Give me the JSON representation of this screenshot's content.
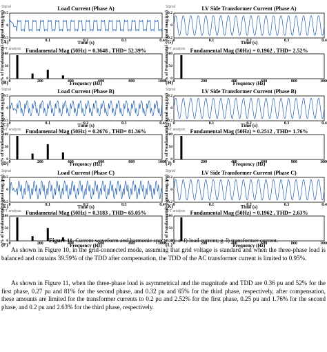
{
  "figure": {
    "caption_label": "Figure 11.",
    "caption_text": " Current waveform and harmonic spectrum: a–f) load current; g–l) transformer current.",
    "tag_wave_left": "Signal",
    "tag_fft": "FFT analysis",
    "tag_fft_left": "FFT analysis",
    "tag_wave_right": "Signal",
    "wave_ylabel": "Signal mag.(pu)",
    "fft_ylabel": "% of Fundamental",
    "wave_xlabel": "Time (s)",
    "fft_xlabel": "Frequency (Hz)",
    "panels": [
      {
        "letter": "(A)",
        "title": "Load Current (Phase A)"
      },
      {
        "letter": "(B)",
        "title": "Fundamental Mag (50Hz) = 0.3648 , THD= 52.39%"
      },
      {
        "letter": "(C)",
        "title": "Load Current (Phase B)"
      },
      {
        "letter": "(D)",
        "title": "Fundamental Mag (50Hz) = 0.2676 , THD= 81.36%"
      },
      {
        "letter": "(E)",
        "title": "Load Current (Phase C)"
      },
      {
        "letter": "(F)",
        "title": "Fundamental Mag (50Hz) = 0.3183 , THD= 65.05%"
      },
      {
        "letter": "(G)",
        "title": "LV Side Transformer Current (Phase A)"
      },
      {
        "letter": "(H)",
        "title": "Fundamental Mag (50Hz) = 0.1962 , THD= 2.52%"
      },
      {
        "letter": "(I)",
        "title": "LV Side Transformer Current (Phase B)"
      },
      {
        "letter": "(J)",
        "title": "Fundamental Mag (50Hz) = 0.2512 , THD= 1.76%"
      },
      {
        "letter": "(K)",
        "title": "LV Side Transformer Current (Phase C)"
      },
      {
        "letter": "(L)",
        "title": "Fundamental Mag (50Hz) = 0.1962 , THD= 2.63%"
      }
    ],
    "time_ticks": [
      "0",
      "0.1",
      "0.2",
      "0.3",
      "0.4"
    ],
    "freq_ticks": [
      "0",
      "200",
      "400",
      "600",
      "800",
      "1000"
    ],
    "wave_yticks_load": [
      "0.5",
      "0",
      "-0.5"
    ],
    "wave_yticks_trans": [
      "0.2",
      "0",
      "-0.2"
    ],
    "fft_yticks": [
      "100",
      "50",
      "0"
    ]
  },
  "paragraphs": [
    "As shown in Figure 10, in the grid-connected mode, assuming that grid voltage is standard and when the three-phase load is balanced and contains 39.59% of the TDD after compensation, the TDD of the AC transformer current is limited to 0.95%.",
    "As shown in Figure 11, when the three-phase load is asymmetrical and the magnitude and TDD are 0.36 pu and 52% for the first phase, 0.27 pu and 81% for the second phase, and 0.32 pu and 65% for the third phase, respectively, after compensation, these amounts are limited for the transformer currents to 0.2 pu and 2.52% for the first phase, 0.25 pu and 1.76% for the second phase, and 0.2 pu and 2.63% for the third phase, respectively."
  ],
  "chart_data": [
    {
      "panel": "B",
      "type": "bar",
      "title": "Fundamental Mag (50Hz) = 0.3648 , THD= 52.39%",
      "xlabel": "Frequency (Hz)",
      "ylabel": "% of Fundamental",
      "xlim": [
        0,
        1000
      ],
      "ylim": [
        0,
        100
      ],
      "x": [
        50,
        150,
        250,
        350
      ],
      "values": [
        100,
        22,
        38,
        14
      ]
    },
    {
      "panel": "D",
      "type": "bar",
      "title": "Fundamental Mag (50Hz) = 0.2676 , THD= 81.36%",
      "xlabel": "Frequency (Hz)",
      "ylabel": "% of Fundamental",
      "xlim": [
        0,
        1000
      ],
      "ylim": [
        0,
        100
      ],
      "x": [
        50,
        150,
        250,
        350
      ],
      "values": [
        100,
        25,
        65,
        30
      ]
    },
    {
      "panel": "F",
      "type": "bar",
      "title": "Fundamental Mag (50Hz) = 0.3183 , THD= 65.05%",
      "xlabel": "Frequency (Hz)",
      "ylabel": "% of Fundamental",
      "xlim": [
        0,
        1000
      ],
      "ylim": [
        0,
        100
      ],
      "x": [
        50,
        150,
        250,
        350
      ],
      "values": [
        100,
        20,
        55,
        15
      ]
    },
    {
      "panel": "H",
      "type": "bar",
      "title": "Fundamental Mag (50Hz) = 0.1962 , THD= 2.52%",
      "xlabel": "Frequency (Hz)",
      "ylabel": "% of Fundamental",
      "xlim": [
        0,
        1000
      ],
      "ylim": [
        0,
        100
      ],
      "x": [
        50
      ],
      "values": [
        100
      ]
    },
    {
      "panel": "J",
      "type": "bar",
      "title": "Fundamental Mag (50Hz) = 0.2512 , THD= 1.76%",
      "xlabel": "Frequency (Hz)",
      "ylabel": "% of Fundamental",
      "xlim": [
        0,
        1000
      ],
      "ylim": [
        0,
        100
      ],
      "x": [
        50
      ],
      "values": [
        100
      ]
    },
    {
      "panel": "L",
      "type": "bar",
      "title": "Fundamental Mag (50Hz) = 0.1962 , THD= 2.63%",
      "xlabel": "Frequency (Hz)",
      "ylabel": "% of Fundamental",
      "xlim": [
        0,
        1000
      ],
      "ylim": [
        0,
        100
      ],
      "x": [
        50
      ],
      "values": [
        100
      ]
    }
  ],
  "colors": {
    "waveform": "#1f5fae",
    "spectrum": "#000000"
  }
}
